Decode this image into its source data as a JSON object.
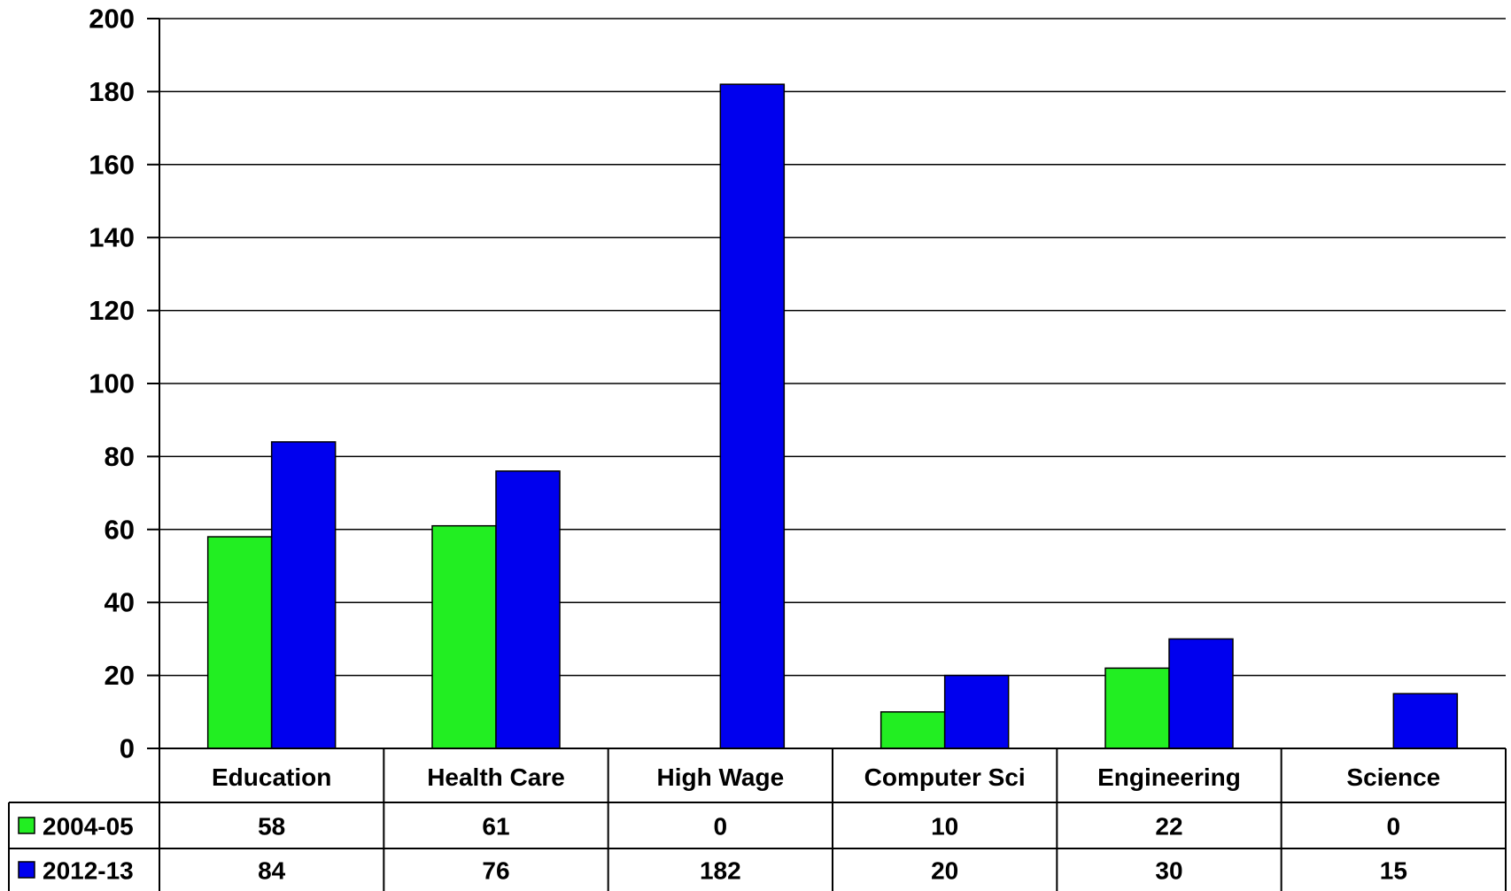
{
  "chart_data": {
    "type": "bar",
    "categories": [
      "Education",
      "Health Care",
      "High Wage",
      "Computer Sci",
      "Engineering",
      "Science"
    ],
    "series": [
      {
        "name": "2004-05",
        "color": "#22ee22",
        "values": [
          58,
          61,
          0,
          10,
          22,
          0
        ]
      },
      {
        "name": "2012-13",
        "color": "#0000ee",
        "values": [
          84,
          76,
          182,
          20,
          30,
          15
        ]
      }
    ],
    "ylim": [
      0,
      200
    ],
    "yticks": [
      0,
      20,
      40,
      60,
      80,
      100,
      120,
      140,
      160,
      180,
      200
    ],
    "grid": true,
    "legend": "data-table",
    "title": "",
    "xlabel": "",
    "ylabel": ""
  }
}
